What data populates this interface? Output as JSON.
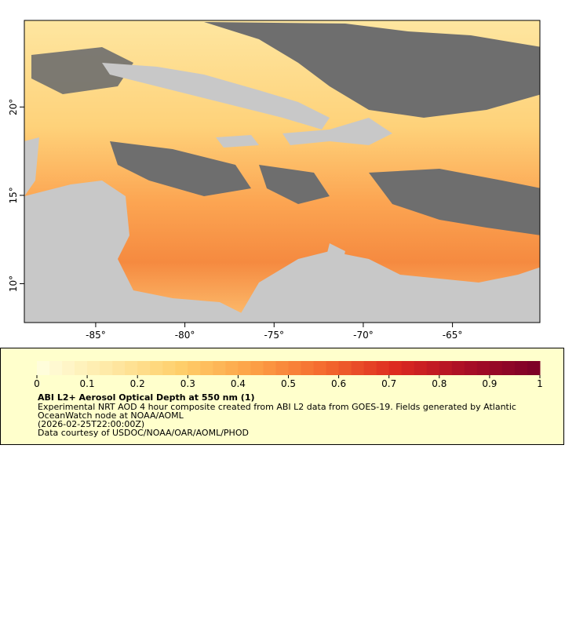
{
  "map": {
    "xlim": [
      -89,
      -60.1
    ],
    "ylim": [
      7.8,
      24.9
    ],
    "xticks": [
      {
        "value": -85,
        "label": "-85°"
      },
      {
        "value": -80,
        "label": "-80°"
      },
      {
        "value": -75,
        "label": "-75°"
      },
      {
        "value": -70,
        "label": "-70°"
      },
      {
        "value": -65,
        "label": "-65°"
      }
    ],
    "yticks": [
      {
        "value": 10,
        "label": "10°"
      },
      {
        "value": 15,
        "label": "15°"
      },
      {
        "value": 20,
        "label": "20°"
      }
    ]
  },
  "legend": {
    "colorbar": {
      "range": [
        0,
        1
      ],
      "ticks": [
        0,
        0.1,
        0.2,
        0.3,
        0.4,
        0.5,
        0.6,
        0.7,
        0.8,
        0.9,
        1
      ],
      "colors": [
        "#ffffe0",
        "#fee9a6",
        "#fecf6a",
        "#fda146",
        "#f46a2e",
        "#dd2a20",
        "#a80d26",
        "#7a0027"
      ]
    },
    "title": "ABI L2+ Aerosol Optical Depth at 550 nm (1)",
    "lines": [
      "Experimental NRT AOD 4 hour composite created from ABI L2 data from GOES-19. Fields generated by Atlantic",
      "OceanWatch node at NOAA/AOML",
      "(2026-02-25T22:00:00Z)",
      "Data courtesy of USDOC/NOAA/OAR/AOML/PHOD"
    ]
  }
}
